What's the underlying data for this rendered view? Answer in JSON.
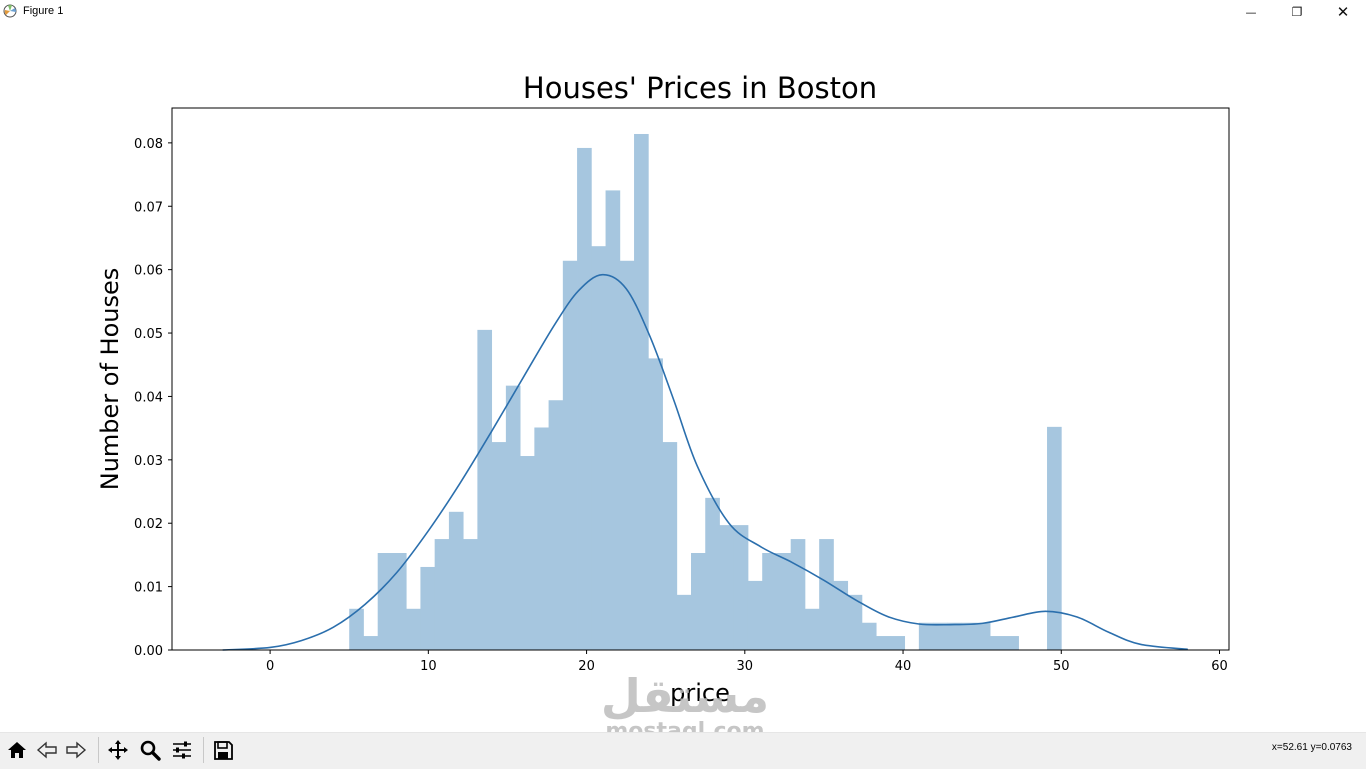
{
  "window": {
    "title": "Figure 1",
    "minimize_glyph": "—",
    "maximize_glyph": "❐",
    "close_glyph": "✕"
  },
  "toolbar": {
    "buttons": [
      "home-icon",
      "back-icon",
      "forward-icon",
      "pan-icon",
      "zoom-icon",
      "configure-subplots-icon",
      "save-icon"
    ],
    "coordinates": "x=52.61 y=0.0763"
  },
  "watermark": {
    "arabic": "مستقل",
    "latin": "mostaql.com"
  },
  "chart_data": {
    "type": "bar",
    "title": "Houses' Prices in Boston",
    "xlabel": "price",
    "ylabel": "Number of Houses",
    "xlim": [
      -6.2,
      60.6
    ],
    "ylim": [
      0,
      0.0855
    ],
    "xticks": [
      0,
      10,
      20,
      30,
      40,
      50,
      60
    ],
    "yticks": [
      0.0,
      0.01,
      0.02,
      0.03,
      0.04,
      0.05,
      0.06,
      0.07,
      0.08
    ],
    "ytick_labels": [
      "0.00",
      "0.01",
      "0.02",
      "0.03",
      "0.04",
      "0.05",
      "0.06",
      "0.07",
      "0.08"
    ],
    "grid": false,
    "series": [
      {
        "kind": "histogram",
        "color": "#a6c6df",
        "bin_start": 5.0,
        "bin_width": 0.9,
        "values": [
          0.0065,
          0.0022,
          0.0153,
          0.0153,
          0.0065,
          0.0131,
          0.0175,
          0.0218,
          0.0175,
          0.0505,
          0.0328,
          0.0417,
          0.0306,
          0.0351,
          0.0394,
          0.0614,
          0.0792,
          0.0637,
          0.0725,
          0.0614,
          0.0814,
          0.046,
          0.0328,
          0.0087,
          0.0153,
          0.024,
          0.0197,
          0.0197,
          0.0109,
          0.0153,
          0.0153,
          0.0175,
          0.0065,
          0.0175,
          0.0109,
          0.0087,
          0.0043,
          0.0022,
          0.0022,
          0.0,
          0.0043,
          0.0043,
          0.0043,
          0.0043,
          0.0043,
          0.0022,
          0.0022,
          0.0,
          0.0,
          0.0352
        ]
      },
      {
        "kind": "kde",
        "color": "#2b6fad",
        "x": [
          -3,
          0,
          2,
          4,
          6,
          8,
          10,
          12,
          14,
          16,
          18,
          19.5,
          21,
          22.5,
          24,
          25.5,
          27,
          29,
          31,
          33,
          35,
          37,
          39,
          41,
          43,
          45,
          47,
          49,
          51,
          53,
          55,
          58
        ],
        "y": [
          0.0,
          0.0004,
          0.0015,
          0.0036,
          0.0072,
          0.0122,
          0.0188,
          0.0263,
          0.0345,
          0.043,
          0.0514,
          0.0567,
          0.0592,
          0.057,
          0.0495,
          0.0395,
          0.029,
          0.02,
          0.0163,
          0.0138,
          0.011,
          0.0079,
          0.0053,
          0.0041,
          0.004,
          0.0042,
          0.0052,
          0.0061,
          0.0052,
          0.0028,
          0.0009,
          0.0001
        ]
      }
    ]
  }
}
